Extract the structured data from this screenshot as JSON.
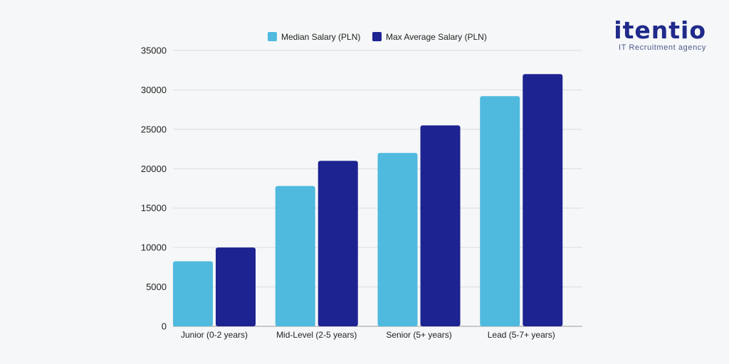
{
  "brand": {
    "name": "itentio",
    "tagline": "IT Recruitment agency"
  },
  "colors": {
    "median": "#4fbade",
    "max": "#1d2391",
    "grid": "#d9dbe0",
    "axis": "#9a9a9a"
  },
  "chart_data": {
    "type": "bar",
    "title": "",
    "xlabel": "",
    "ylabel": "",
    "categories": [
      "Junior (0-2 years)",
      "Mid-Level (2-5 years)",
      "Senior (5+ years)",
      "Lead (5-7+ years)"
    ],
    "series": [
      {
        "name": "Median Salary (PLN)",
        "values": [
          8250,
          17800,
          22000,
          29200
        ]
      },
      {
        "name": "Max Average Salary (PLN)",
        "values": [
          10000,
          21000,
          25500,
          32000
        ]
      }
    ],
    "ylim": [
      0,
      35000
    ],
    "yticks": [
      0,
      5000,
      10000,
      15000,
      20000,
      25000,
      30000,
      35000
    ],
    "grid": true,
    "legend_position": "top-center"
  }
}
